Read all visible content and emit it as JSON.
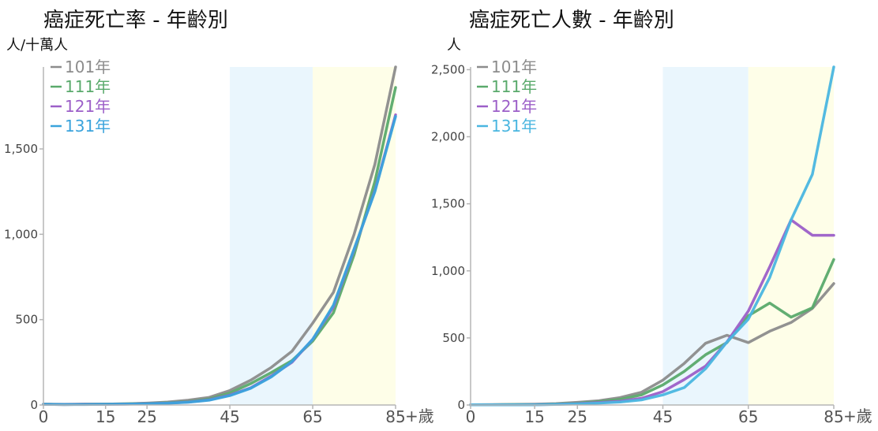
{
  "chart_data": [
    {
      "type": "line",
      "title": "癌症死亡率 - 年齡別",
      "ylabel": "人/十萬人",
      "xlim": [
        0,
        85
      ],
      "ylim": [
        0,
        1980
      ],
      "yticks": [
        0,
        500,
        1000,
        1500
      ],
      "ytick_labels": [
        "0",
        "500",
        "1,000",
        "1,500"
      ],
      "xticks": [
        0,
        15,
        25,
        45,
        65,
        85
      ],
      "xtick_labels": [
        "0",
        "15",
        "25",
        "45",
        "65",
        "85"
      ],
      "x_suffix": "+歲",
      "bands": [
        {
          "from": 45,
          "to": 65,
          "color": "#eaf6fd"
        },
        {
          "from": 65,
          "to": 85,
          "color": "#fefee8"
        }
      ],
      "legend_position": "top-left",
      "x": [
        0,
        5,
        10,
        15,
        20,
        25,
        30,
        35,
        40,
        45,
        50,
        55,
        60,
        65,
        70,
        75,
        80,
        85
      ],
      "series": [
        {
          "name": "101年",
          "color": "#8c8c8c",
          "values": [
            5,
            4,
            5,
            5,
            7,
            11,
            17,
            28,
            45,
            85,
            145,
            220,
            315,
            480,
            660,
            1000,
            1410,
            1980
          ]
        },
        {
          "name": "111年",
          "color": "#5aaa6c",
          "values": [
            4,
            3,
            4,
            5,
            7,
            9,
            13,
            20,
            35,
            70,
            125,
            190,
            260,
            375,
            540,
            880,
            1310,
            1860
          ]
        },
        {
          "name": "121年",
          "color": "#9c5fc8",
          "values": [
            4,
            3,
            4,
            4,
            5,
            8,
            11,
            17,
            30,
            58,
            100,
            170,
            250,
            385,
            575,
            910,
            1255,
            1700
          ]
        },
        {
          "name": "131年",
          "color": "#3aa3dc",
          "values": [
            4,
            3,
            3,
            4,
            5,
            7,
            10,
            16,
            28,
            55,
            98,
            165,
            255,
            385,
            585,
            915,
            1250,
            1690
          ]
        }
      ]
    },
    {
      "type": "line",
      "title": "癌症死亡人數 - 年齡別",
      "ylabel": "人",
      "xlim": [
        0,
        85
      ],
      "ylim": [
        0,
        2520
      ],
      "yticks": [
        0,
        500,
        1000,
        1500,
        2000,
        2500
      ],
      "ytick_labels": [
        "0",
        "500",
        "1,000",
        "1,500",
        "2,000",
        "2,500"
      ],
      "xticks": [
        0,
        15,
        25,
        45,
        65,
        85
      ],
      "xtick_labels": [
        "0",
        "15",
        "25",
        "45",
        "65",
        "85"
      ],
      "x_suffix": "+歲",
      "bands": [
        {
          "from": 45,
          "to": 65,
          "color": "#eaf6fd"
        },
        {
          "from": 65,
          "to": 85,
          "color": "#fefee8"
        }
      ],
      "legend_position": "top-left",
      "x": [
        0,
        5,
        10,
        15,
        20,
        25,
        30,
        35,
        40,
        45,
        50,
        55,
        60,
        65,
        70,
        75,
        80,
        85
      ],
      "series": [
        {
          "name": "101年",
          "color": "#8c8c8c",
          "values": [
            2,
            3,
            4,
            6,
            10,
            20,
            32,
            55,
            95,
            185,
            310,
            460,
            520,
            465,
            550,
            615,
            720,
            905
          ]
        },
        {
          "name": "111年",
          "color": "#5aaa6c",
          "values": [
            2,
            2,
            3,
            4,
            7,
            13,
            25,
            42,
            75,
            150,
            250,
            375,
            465,
            665,
            760,
            655,
            725,
            1085
          ]
        },
        {
          "name": "121年",
          "color": "#9c5fc8",
          "values": [
            1,
            1,
            2,
            3,
            5,
            10,
            18,
            28,
            50,
            100,
            190,
            290,
            470,
            700,
            1030,
            1380,
            1265,
            1265
          ]
        },
        {
          "name": "131年",
          "color": "#4ab6e0",
          "values": [
            1,
            1,
            2,
            2,
            4,
            8,
            14,
            22,
            38,
            75,
            130,
            270,
            470,
            640,
            950,
            1380,
            1720,
            2520
          ]
        }
      ]
    }
  ]
}
